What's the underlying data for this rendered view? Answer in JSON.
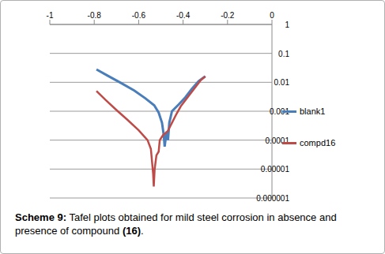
{
  "chart_data": {
    "type": "line",
    "title": "Scheme 9: Tafel plots obtained for mild steel corrosion in absence and presence of  compound (16).",
    "log": "y",
    "grid": true,
    "legend": "right",
    "xlim": [
      -1,
      0
    ],
    "xticks": [
      -1,
      -0.8,
      -0.6,
      -0.4,
      -0.2,
      0
    ],
    "ylim": [
      1e-06,
      1
    ],
    "yticks": [
      1,
      0.1,
      0.01,
      0.001,
      0.0001,
      1e-05,
      {
        "value": 1e-06,
        "label": "0.000001"
      }
    ],
    "series": [
      {
        "name": "blank1",
        "color": "#4a7ebb",
        "x": [
          -0.79,
          -0.74,
          -0.68,
          -0.62,
          -0.57,
          -0.53,
          -0.51,
          -0.495,
          -0.487,
          -0.483,
          -0.478,
          -0.473,
          -0.468,
          -0.462,
          -0.45,
          -0.42,
          -0.39,
          -0.36,
          -0.33,
          -0.3
        ],
        "values": [
          0.028,
          0.017,
          0.0095,
          0.0052,
          0.0028,
          0.0016,
          0.0009,
          0.0004,
          0.00015,
          6e-05,
          0.00012,
          0.0002,
          0.0001,
          0.0004,
          0.001,
          0.0017,
          0.003,
          0.006,
          0.011,
          0.016
        ]
      },
      {
        "name": "compd16",
        "color": "#be4b48",
        "x": [
          -0.79,
          -0.75,
          -0.7,
          -0.65,
          -0.6,
          -0.56,
          -0.545,
          -0.535,
          -0.532,
          -0.528,
          -0.52,
          -0.51,
          -0.505,
          -0.49,
          -0.47,
          -0.45,
          -0.43,
          -0.41,
          -0.38,
          -0.35,
          -0.32,
          -0.3
        ],
        "values": [
          0.005,
          0.0025,
          0.0011,
          0.0005,
          0.00022,
          0.0001,
          5e-05,
          7e-06,
          2.5e-06,
          1e-05,
          3e-05,
          4e-05,
          0.0001,
          0.00015,
          0.0002,
          0.0004,
          0.0008,
          0.0015,
          0.003,
          0.006,
          0.012,
          0.016
        ]
      }
    ]
  }
}
